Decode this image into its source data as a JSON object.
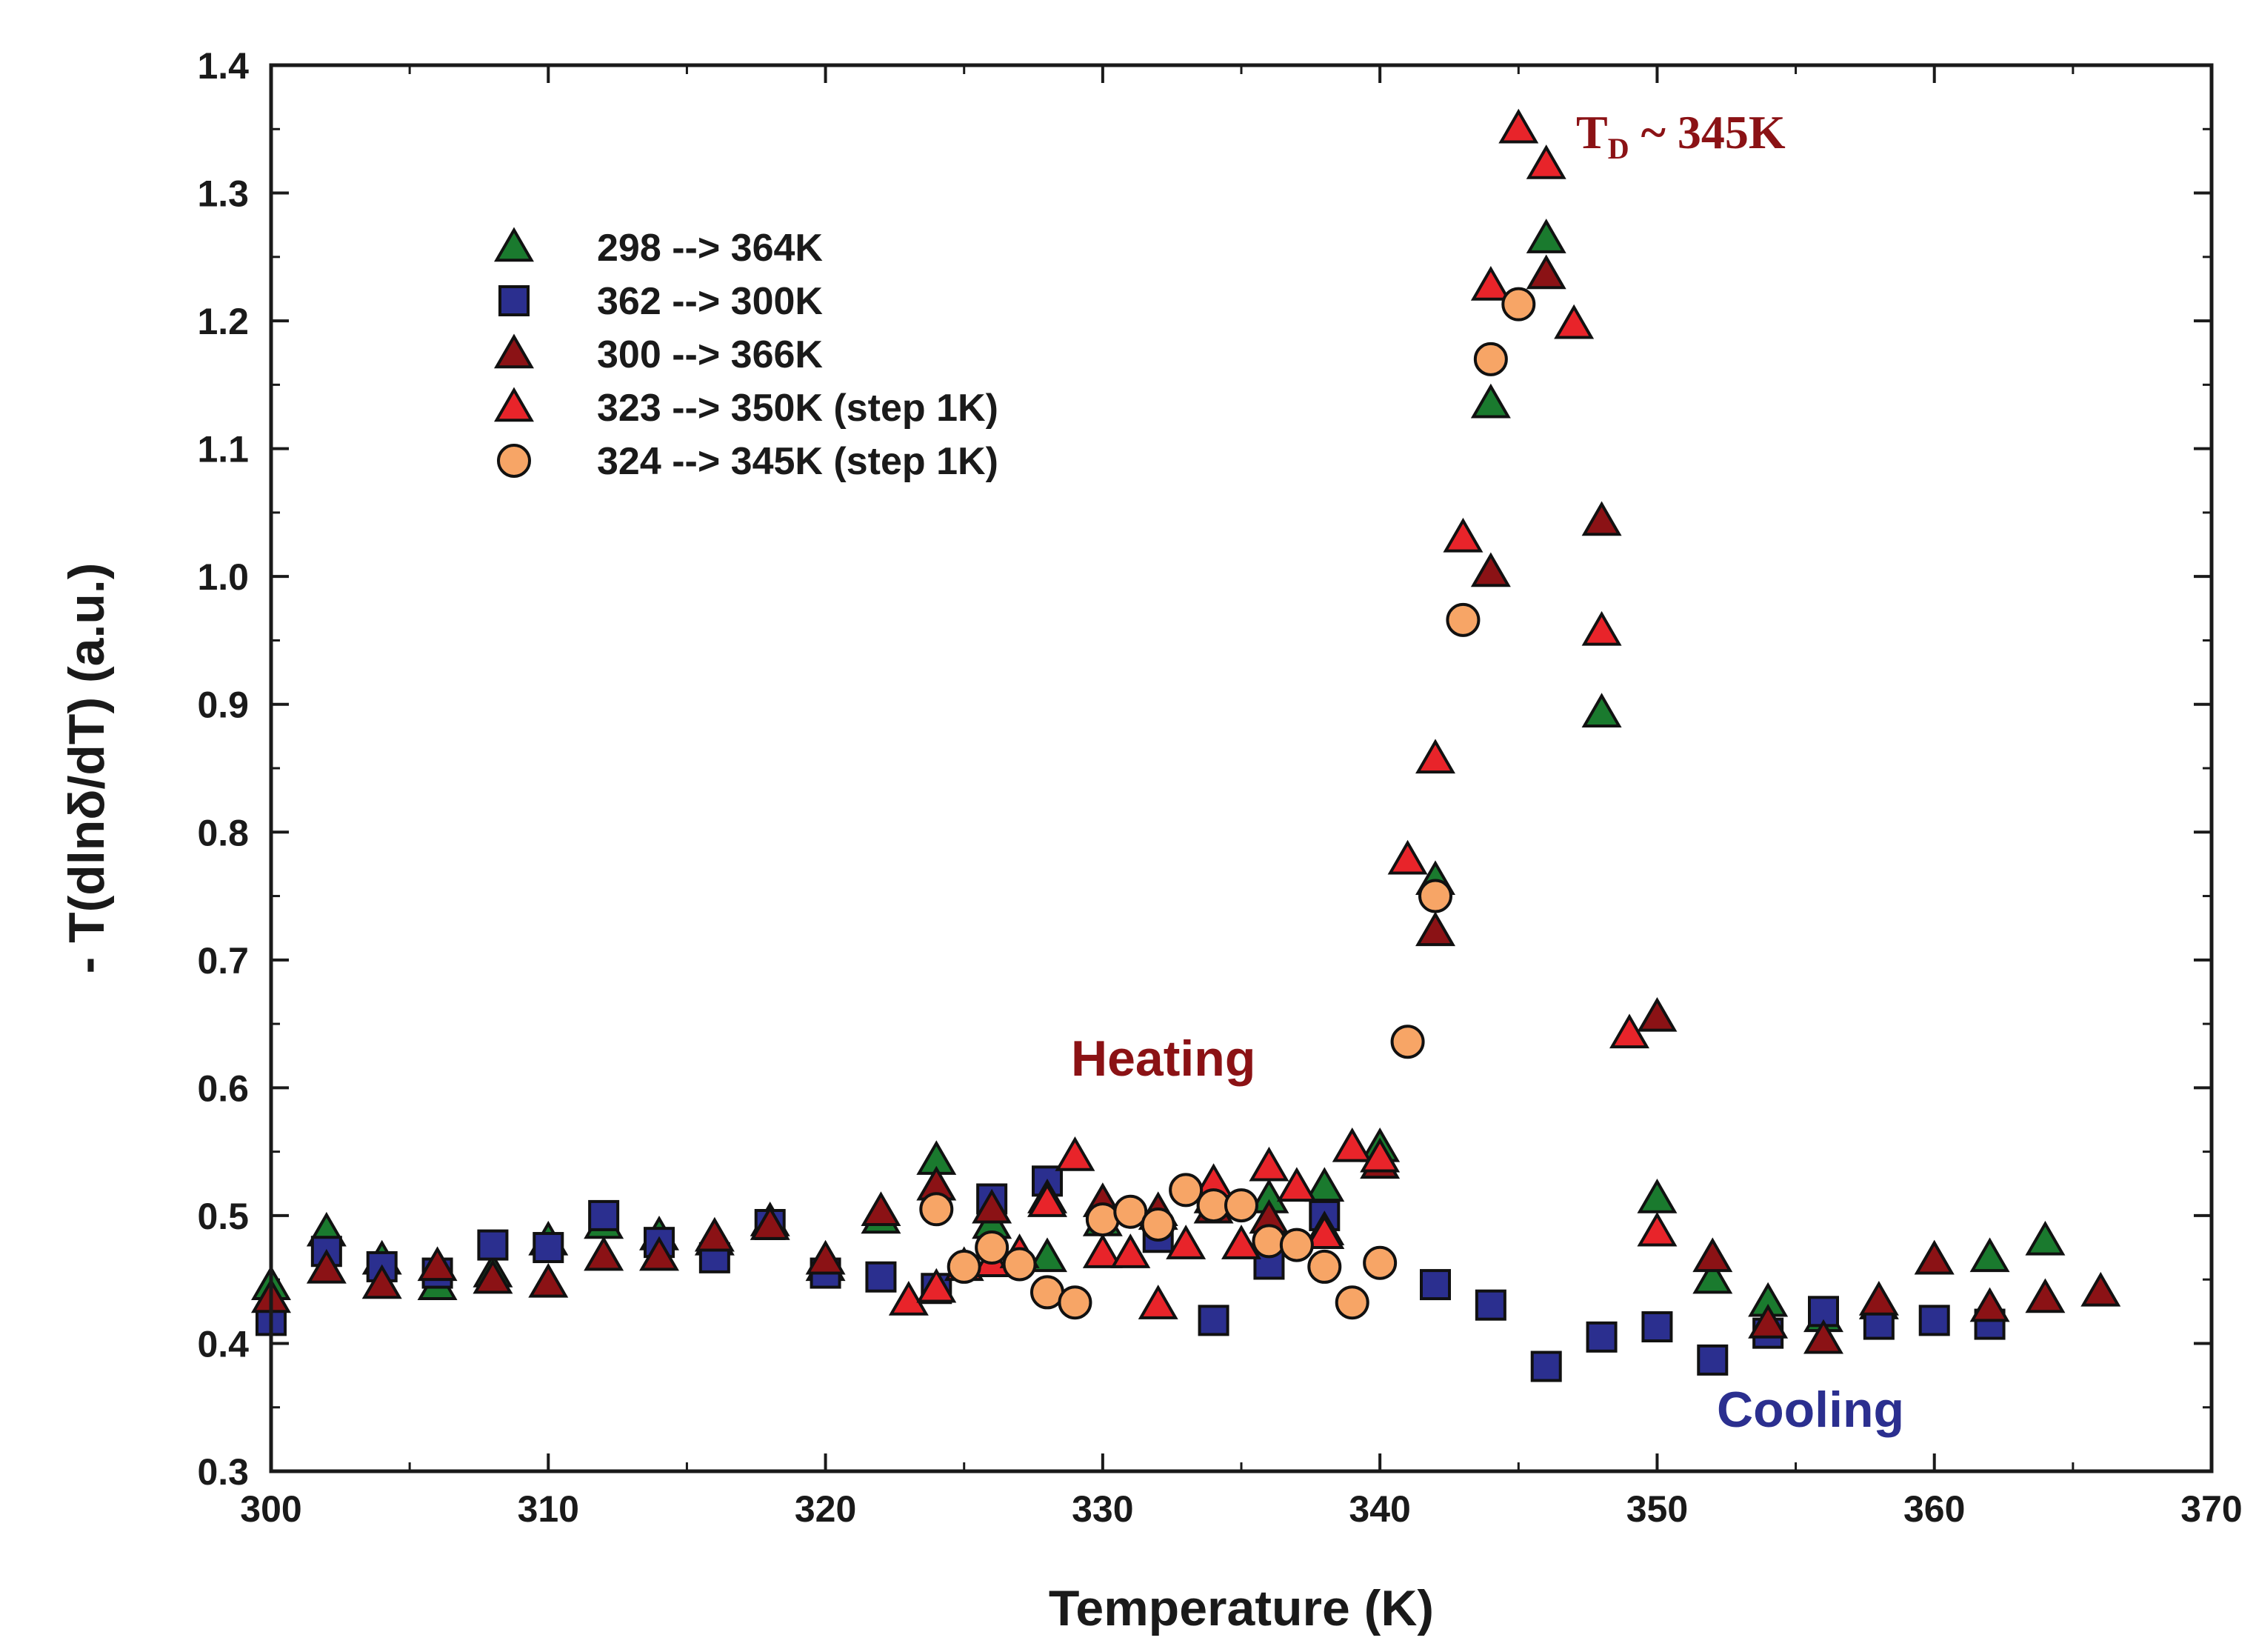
{
  "chart_data": {
    "type": "scatter",
    "title": "",
    "xlabel": "Temperature (K)",
    "ylabel": "- T(dlnδ/dT) (a.u.)",
    "xlim": [
      300,
      370
    ],
    "ylim": [
      0.3,
      1.4
    ],
    "x_ticks": [
      300,
      310,
      320,
      330,
      340,
      350,
      360,
      370
    ],
    "y_ticks": [
      0.3,
      0.4,
      0.5,
      0.6,
      0.7,
      0.8,
      0.9,
      1.0,
      1.1,
      1.2,
      1.3,
      1.4
    ],
    "x_tick_labels": [
      "300",
      "310",
      "320",
      "330",
      "340",
      "350",
      "360",
      "370"
    ],
    "y_tick_labels": [
      "0.3",
      "0.4",
      "0.5",
      "0.6",
      "0.7",
      "0.8",
      "0.9",
      "1.0",
      "1.1",
      "1.2",
      "1.3",
      "1.4"
    ],
    "grid": false,
    "legend_position": "top-left",
    "annotations": {
      "heating": "Heating",
      "cooling": "Cooling",
      "td_main": "T",
      "td_sub": "D",
      "td_rest": " ~ 345K"
    },
    "series": [
      {
        "name": "298 --> 364K",
        "marker": "triangle",
        "color": "#1a7a2e",
        "points": [
          [
            300,
            0.445
          ],
          [
            302,
            0.487
          ],
          [
            304,
            0.465
          ],
          [
            306,
            0.445
          ],
          [
            308,
            0.455
          ],
          [
            310,
            0.48
          ],
          [
            312,
            0.493
          ],
          [
            314,
            0.484
          ],
          [
            316,
            0.48
          ],
          [
            318,
            0.495
          ],
          [
            320,
            0.46
          ],
          [
            322,
            0.497
          ],
          [
            324,
            0.543
          ],
          [
            326,
            0.493
          ],
          [
            328,
            0.467
          ],
          [
            330,
            0.495
          ],
          [
            332,
            0.5
          ],
          [
            334,
            0.513
          ],
          [
            336,
            0.513
          ],
          [
            338,
            0.522
          ],
          [
            340,
            0.553
          ],
          [
            342,
            0.762
          ],
          [
            344,
            1.135
          ],
          [
            346,
            1.264
          ],
          [
            348,
            0.893
          ],
          [
            350,
            0.513
          ],
          [
            352,
            0.45
          ],
          [
            354,
            0.432
          ],
          [
            356,
            0.42
          ],
          [
            358,
            0.43
          ],
          [
            360,
            0.465
          ],
          [
            362,
            0.467
          ],
          [
            364,
            0.48
          ]
        ]
      },
      {
        "name": "362 --> 300K",
        "marker": "square",
        "color": "#2b2f8f",
        "points": [
          [
            300,
            0.418
          ],
          [
            302,
            0.472
          ],
          [
            304,
            0.46
          ],
          [
            306,
            0.455
          ],
          [
            308,
            0.477
          ],
          [
            310,
            0.475
          ],
          [
            312,
            0.5
          ],
          [
            314,
            0.479
          ],
          [
            316,
            0.467
          ],
          [
            318,
            0.493
          ],
          [
            320,
            0.455
          ],
          [
            322,
            0.452
          ],
          [
            324,
            0.443
          ],
          [
            326,
            0.513
          ],
          [
            328,
            0.527
          ],
          [
            332,
            0.483
          ],
          [
            334,
            0.418
          ],
          [
            336,
            0.462
          ],
          [
            338,
            0.5
          ],
          [
            342,
            0.446
          ],
          [
            344,
            0.43
          ],
          [
            346,
            0.382
          ],
          [
            348,
            0.405
          ],
          [
            350,
            0.413
          ],
          [
            352,
            0.387
          ],
          [
            354,
            0.408
          ],
          [
            356,
            0.425
          ],
          [
            358,
            0.415
          ],
          [
            360,
            0.418
          ],
          [
            362,
            0.415
          ]
        ]
      },
      {
        "name": "300 --> 366K",
        "marker": "triangle",
        "color": "#8b1215",
        "points": [
          [
            300,
            0.435
          ],
          [
            302,
            0.458
          ],
          [
            304,
            0.446
          ],
          [
            306,
            0.46
          ],
          [
            308,
            0.45
          ],
          [
            310,
            0.447
          ],
          [
            312,
            0.468
          ],
          [
            314,
            0.468
          ],
          [
            316,
            0.483
          ],
          [
            318,
            0.492
          ],
          [
            320,
            0.465
          ],
          [
            322,
            0.503
          ],
          [
            324,
            0.523
          ],
          [
            326,
            0.505
          ],
          [
            328,
            0.513
          ],
          [
            330,
            0.51
          ],
          [
            332,
            0.503
          ],
          [
            334,
            0.505
          ],
          [
            336,
            0.497
          ],
          [
            338,
            0.488
          ],
          [
            340,
            0.54
          ],
          [
            342,
            0.722
          ],
          [
            344,
            1.003
          ],
          [
            346,
            1.236
          ],
          [
            348,
            1.043
          ],
          [
            350,
            0.655
          ],
          [
            352,
            0.467
          ],
          [
            354,
            0.415
          ],
          [
            356,
            0.403
          ],
          [
            358,
            0.433
          ],
          [
            360,
            0.465
          ],
          [
            362,
            0.428
          ],
          [
            364,
            0.435
          ],
          [
            366,
            0.44
          ]
        ]
      },
      {
        "name": "323 --> 350K (step 1K)",
        "marker": "triangle",
        "color": "#e8242a",
        "points": [
          [
            323,
            0.433
          ],
          [
            324,
            0.443
          ],
          [
            325,
            0.46
          ],
          [
            326,
            0.463
          ],
          [
            327,
            0.47
          ],
          [
            328,
            0.51
          ],
          [
            329,
            0.546
          ],
          [
            330,
            0.47
          ],
          [
            331,
            0.47
          ],
          [
            332,
            0.43
          ],
          [
            333,
            0.477
          ],
          [
            334,
            0.525
          ],
          [
            335,
            0.477
          ],
          [
            336,
            0.538
          ],
          [
            337,
            0.522
          ],
          [
            338,
            0.485
          ],
          [
            339,
            0.553
          ],
          [
            340,
            0.545
          ],
          [
            341,
            0.778
          ],
          [
            342,
            0.857
          ],
          [
            343,
            1.03
          ],
          [
            344,
            1.227
          ],
          [
            345,
            1.35
          ],
          [
            346,
            1.322
          ],
          [
            347,
            1.197
          ],
          [
            348,
            0.957
          ],
          [
            349,
            0.642
          ],
          [
            350,
            0.487
          ]
        ]
      },
      {
        "name": "324 --> 345K (step 1K)",
        "marker": "circle",
        "color": "#f7a566",
        "points": [
          [
            324,
            0.505
          ],
          [
            325,
            0.46
          ],
          [
            326,
            0.475
          ],
          [
            327,
            0.462
          ],
          [
            328,
            0.44
          ],
          [
            329,
            0.432
          ],
          [
            330,
            0.497
          ],
          [
            331,
            0.503
          ],
          [
            332,
            0.493
          ],
          [
            333,
            0.52
          ],
          [
            334,
            0.508
          ],
          [
            335,
            0.508
          ],
          [
            336,
            0.48
          ],
          [
            337,
            0.477
          ],
          [
            338,
            0.46
          ],
          [
            339,
            0.432
          ],
          [
            340,
            0.463
          ],
          [
            341,
            0.636
          ],
          [
            342,
            0.75
          ],
          [
            343,
            0.966
          ],
          [
            344,
            1.17
          ],
          [
            345,
            1.213
          ]
        ]
      }
    ]
  },
  "colors": {
    "heating": "#8b1215",
    "cooling": "#2b2f8f",
    "axis": "#1a1a1a",
    "td": "#8b1215"
  }
}
